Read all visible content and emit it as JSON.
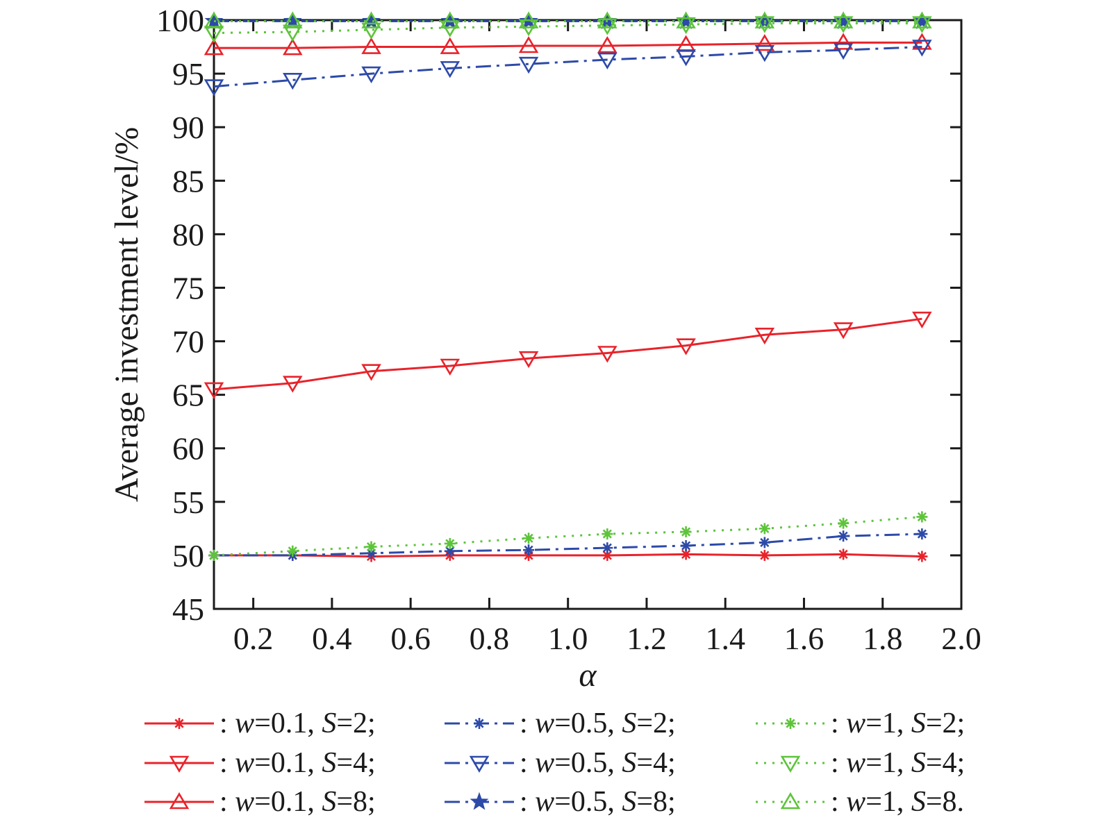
{
  "chart_data": {
    "type": "line",
    "title": "",
    "xlabel": "α",
    "ylabel": "Average investment level/%",
    "xlim": [
      0.1,
      2.0
    ],
    "ylim": [
      45,
      100
    ],
    "x_ticks": [
      0.2,
      0.4,
      0.6,
      0.8,
      1.0,
      1.2,
      1.4,
      1.6,
      1.8,
      2.0
    ],
    "x_tick_labels": [
      "0.2",
      "0.4",
      "0.6",
      "0.8",
      "1.0",
      "1.2",
      "1.4",
      "1.6",
      "1.8",
      "2.0"
    ],
    "y_ticks": [
      45,
      50,
      55,
      60,
      65,
      70,
      75,
      80,
      85,
      90,
      95,
      100
    ],
    "y_tick_labels": [
      "45",
      "50",
      "55",
      "60",
      "65",
      "70",
      "75",
      "80",
      "85",
      "90",
      "95",
      "100"
    ],
    "grid": false,
    "legend_position": "bottom",
    "x": [
      0.1,
      0.3,
      0.5,
      0.7,
      0.9,
      1.1,
      1.3,
      1.5,
      1.7,
      1.9
    ],
    "series": [
      {
        "name": ": w=0.1, S=2;",
        "label_parts": {
          "pre": ": ",
          "w": "0.1",
          "mid": ", ",
          "s": "2",
          "end": ";"
        },
        "color": "#e8232b",
        "dash": "solid",
        "marker": "asterisk",
        "values": [
          50.0,
          50.0,
          49.9,
          50.0,
          50.0,
          50.0,
          50.1,
          50.0,
          50.1,
          49.9
        ]
      },
      {
        "name": ": w=0.1, S=4;",
        "label_parts": {
          "pre": ": ",
          "w": "0.1",
          "mid": ", ",
          "s": "4",
          "end": ";"
        },
        "color": "#e8232b",
        "dash": "solid",
        "marker": "triangle-down",
        "values": [
          65.5,
          66.1,
          67.2,
          67.7,
          68.4,
          68.9,
          69.6,
          70.6,
          71.1,
          72.1
        ]
      },
      {
        "name": ": w=0.1, S=8;",
        "label_parts": {
          "pre": ": ",
          "w": "0.1",
          "mid": ", ",
          "s": "8",
          "end": ";"
        },
        "color": "#e8232b",
        "dash": "solid",
        "marker": "triangle-up",
        "values": [
          97.4,
          97.4,
          97.5,
          97.5,
          97.6,
          97.6,
          97.7,
          97.8,
          97.9,
          97.9
        ]
      },
      {
        "name": ": w=0.5, S=2;",
        "label_parts": {
          "pre": ": ",
          "w": "0.5",
          "mid": ", ",
          "s": "2",
          "end": ";"
        },
        "color": "#2d4aa8",
        "dash": "dashdot",
        "marker": "asterisk",
        "values": [
          50.0,
          50.0,
          50.2,
          50.4,
          50.5,
          50.7,
          50.9,
          51.2,
          51.8,
          52.0
        ]
      },
      {
        "name": ": w=0.5, S=4;",
        "label_parts": {
          "pre": ": ",
          "w": "0.5",
          "mid": ", ",
          "s": "4",
          "end": ";"
        },
        "color": "#2d4aa8",
        "dash": "dashdot",
        "marker": "triangle-down",
        "values": [
          93.8,
          94.4,
          95.0,
          95.5,
          95.9,
          96.3,
          96.6,
          97.0,
          97.2,
          97.5
        ]
      },
      {
        "name": ": w=0.5, S=8;",
        "label_parts": {
          "pre": ": ",
          "w": "0.5",
          "mid": ", ",
          "s": "8",
          "end": ";"
        },
        "color": "#2d4aa8",
        "dash": "dashdot",
        "marker": "star",
        "values": [
          99.9,
          99.9,
          99.9,
          99.9,
          99.9,
          99.9,
          99.9,
          99.9,
          99.9,
          99.9
        ]
      },
      {
        "name": ": w=1, S=2;",
        "label_parts": {
          "pre": ": ",
          "w": "1",
          "mid": ", ",
          "s": "2",
          "end": ";"
        },
        "color": "#5dc43a",
        "dash": "dotted",
        "marker": "asterisk",
        "values": [
          50.0,
          50.4,
          50.8,
          51.1,
          51.6,
          52.0,
          52.2,
          52.5,
          53.0,
          53.6
        ]
      },
      {
        "name": ": w=1, S=4;",
        "label_parts": {
          "pre": ": ",
          "w": "1",
          "mid": ", ",
          "s": "4",
          "end": ";"
        },
        "color": "#5dc43a",
        "dash": "dotted",
        "marker": "triangle-down",
        "values": [
          98.8,
          98.9,
          99.1,
          99.3,
          99.4,
          99.5,
          99.6,
          99.7,
          99.7,
          99.7
        ]
      },
      {
        "name": ": w=1, S=8.",
        "label_parts": {
          "pre": ": ",
          "w": "1",
          "mid": ", ",
          "s": "8",
          "end": "."
        },
        "color": "#5dc43a",
        "dash": "dotted",
        "marker": "triangle-up",
        "values": [
          99.9,
          99.9,
          99.9,
          99.9,
          99.9,
          99.9,
          99.9,
          99.9,
          99.9,
          99.9
        ]
      }
    ]
  }
}
